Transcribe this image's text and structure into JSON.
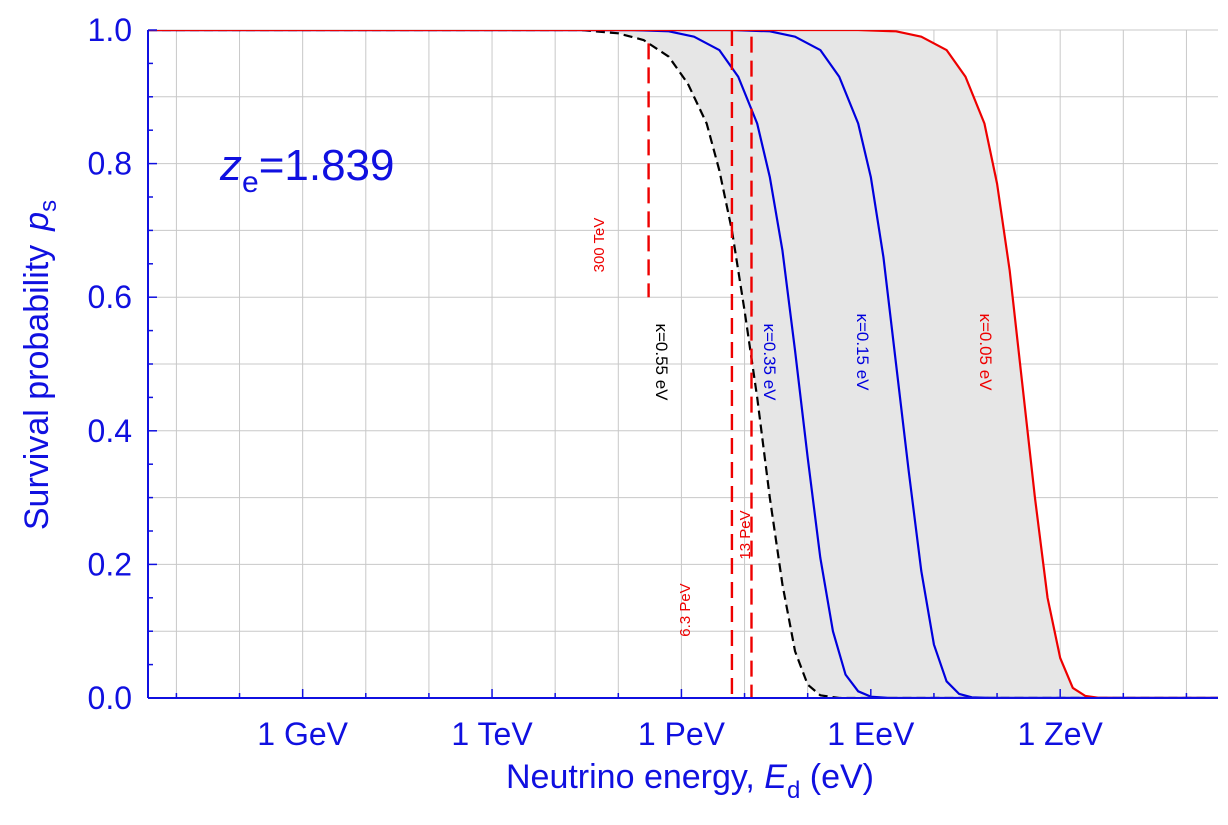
{
  "chart_data": {
    "type": "line",
    "title": "",
    "xlabel": "Neutrino energy, ",
    "xlabel_symbol": "E",
    "xlabel_sub": "d",
    "xlabel_unit": " (eV)",
    "ylabel": "Survival probability",
    "ylabel_symbol": "p",
    "ylabel_sub": "s",
    "x_scale": "log",
    "xlim_log10_eV": [
      6.55,
      23.5
    ],
    "ylim": [
      0,
      1
    ],
    "x_ticks": [
      {
        "log10_eV": 9,
        "label": "1 GeV"
      },
      {
        "log10_eV": 12,
        "label": "1 TeV"
      },
      {
        "log10_eV": 15,
        "label": "1 PeV"
      },
      {
        "log10_eV": 18,
        "label": "1 EeV"
      },
      {
        "log10_eV": 21,
        "label": "1 ZeV"
      }
    ],
    "y_ticks": [
      {
        "value": 0.0,
        "label": "0.0"
      },
      {
        "value": 0.2,
        "label": "0.2"
      },
      {
        "value": 0.4,
        "label": "0.4"
      },
      {
        "value": 0.6,
        "label": "0.6"
      },
      {
        "value": 0.8,
        "label": "0.8"
      },
      {
        "value": 1.0,
        "label": "1.0"
      }
    ],
    "grid": true,
    "annotation": {
      "symbol": "z",
      "sub": "e",
      "text": "=1.839"
    },
    "series": [
      {
        "name": "κ=0.55 eV",
        "color": "#000000",
        "dashed": true,
        "x": [
          13.4,
          14.0,
          14.4,
          14.8,
          15.1,
          15.4,
          15.6,
          15.8,
          16.0,
          16.2,
          16.4,
          16.6,
          16.8,
          17.0,
          17.2,
          17.5
        ],
        "y": [
          1.0,
          0.995,
          0.985,
          0.96,
          0.92,
          0.86,
          0.79,
          0.7,
          0.58,
          0.45,
          0.3,
          0.17,
          0.07,
          0.02,
          0.004,
          0.0
        ]
      },
      {
        "name": "κ=0.35 eV",
        "color": "#0000dd",
        "dashed": false,
        "x": [
          14.2,
          14.8,
          15.2,
          15.6,
          15.9,
          16.2,
          16.4,
          16.6,
          16.8,
          17.0,
          17.2,
          17.4,
          17.6,
          17.8,
          18.0,
          18.3
        ],
        "y": [
          1.0,
          0.998,
          0.99,
          0.97,
          0.93,
          0.86,
          0.78,
          0.67,
          0.52,
          0.36,
          0.21,
          0.1,
          0.035,
          0.01,
          0.002,
          0.0
        ]
      },
      {
        "name": "κ=0.15 eV",
        "color": "#0000dd",
        "dashed": false,
        "x": [
          15.8,
          16.4,
          16.8,
          17.2,
          17.5,
          17.8,
          18.0,
          18.2,
          18.4,
          18.6,
          18.8,
          19.0,
          19.2,
          19.4,
          19.6,
          19.9
        ],
        "y": [
          1.0,
          0.998,
          0.99,
          0.97,
          0.93,
          0.86,
          0.78,
          0.66,
          0.5,
          0.34,
          0.19,
          0.08,
          0.025,
          0.006,
          0.001,
          0.0
        ]
      },
      {
        "name": "κ=0.05 eV",
        "color": "#ee0000",
        "dashed": false,
        "x": [
          17.8,
          18.4,
          18.8,
          19.2,
          19.5,
          19.8,
          20.0,
          20.2,
          20.4,
          20.6,
          20.8,
          21.0,
          21.2,
          21.4,
          21.6,
          21.9
        ],
        "y": [
          1.0,
          0.998,
          0.99,
          0.97,
          0.93,
          0.86,
          0.77,
          0.64,
          0.47,
          0.3,
          0.15,
          0.06,
          0.015,
          0.003,
          0.0005,
          0.0
        ]
      }
    ],
    "shaded_region": {
      "between": [
        "κ=0.55 eV",
        "κ=0.05 eV"
      ],
      "color": "#e6e6e6"
    },
    "vertical_markers": [
      {
        "label": "300 TeV",
        "x_log10_eV": 14.48,
        "y_range": [
          0.6,
          0.98
        ],
        "color": "#ee0000"
      },
      {
        "label": "6.3 PeV",
        "x_log10_eV": 15.8,
        "y_range": [
          0,
          1.0
        ],
        "color": "#ee0000"
      },
      {
        "label": "13 PeV",
        "x_log10_eV": 16.11,
        "y_range": [
          0,
          0.99
        ],
        "color": "#ee0000"
      }
    ]
  }
}
